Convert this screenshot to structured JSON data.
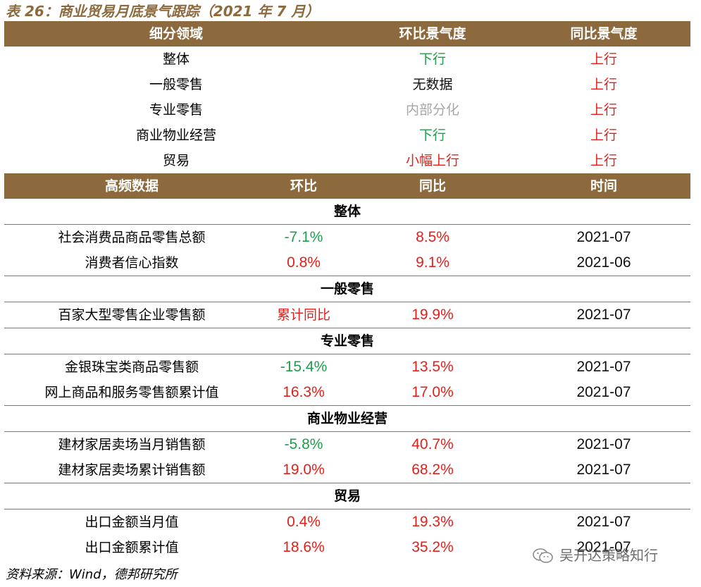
{
  "title": "表 26：商业贸易月底景气跟踪（2021 年 7 月）",
  "source": "资料来源：Wind，德邦研究所",
  "watermark": "吴开达策略知行",
  "colors": {
    "header_bg": "#8c6a3e",
    "down": "#1e9e4a",
    "up": "#e3201b",
    "neutral": "#a6a6a6"
  },
  "sentiment": {
    "headers": [
      "细分领域",
      "环比景气度",
      "同比景气度"
    ],
    "rows": [
      {
        "segment": "整体",
        "mom": "下行",
        "yoy": "上行"
      },
      {
        "segment": "一般零售",
        "mom": "无数据",
        "yoy": "上行"
      },
      {
        "segment": "专业零售",
        "mom": "内部分化",
        "yoy": "上行"
      },
      {
        "segment": "商业物业经营",
        "mom": "下行",
        "yoy": "上行"
      },
      {
        "segment": "贸易",
        "mom": "小幅上行",
        "yoy": "上行"
      }
    ]
  },
  "hf": {
    "headers": [
      "高频数据",
      "环比",
      "同比",
      "时间"
    ],
    "sections": [
      {
        "title": "整体",
        "rows": [
          {
            "name": "社会消费品商品零售总额",
            "mom": "-7.1%",
            "yoy": "8.5%",
            "time": "2021-07"
          },
          {
            "name": "消费者信心指数",
            "mom": "0.8%",
            "yoy": "9.1%",
            "time": "2021-06"
          }
        ]
      },
      {
        "title": "一般零售",
        "rows": [
          {
            "name": "百家大型零售企业零售额",
            "mom": "累计同比",
            "yoy": "19.9%",
            "time": "2021-07"
          }
        ]
      },
      {
        "title": "专业零售",
        "rows": [
          {
            "name": "金银珠宝类商品零售额",
            "mom": "-15.4%",
            "yoy": "13.5%",
            "time": "2021-07"
          },
          {
            "name": "网上商品和服务零售额累计值",
            "mom": "16.3%",
            "yoy": "17.0%",
            "time": "2021-07"
          }
        ]
      },
      {
        "title": "商业物业经营",
        "rows": [
          {
            "name": "建材家居卖场当月销售额",
            "mom": "-5.8%",
            "yoy": "40.7%",
            "time": "2021-07"
          },
          {
            "name": "建材家居卖场累计销售额",
            "mom": "19.0%",
            "yoy": "68.2%",
            "time": "2021-07"
          }
        ]
      },
      {
        "title": "贸易",
        "rows": [
          {
            "name": "出口金额当月值",
            "mom": "0.4%",
            "yoy": "19.3%",
            "time": "2021-07"
          },
          {
            "name": "出口金额累计值",
            "mom": "18.6%",
            "yoy": "35.2%",
            "time": "2021-07"
          }
        ]
      }
    ]
  }
}
